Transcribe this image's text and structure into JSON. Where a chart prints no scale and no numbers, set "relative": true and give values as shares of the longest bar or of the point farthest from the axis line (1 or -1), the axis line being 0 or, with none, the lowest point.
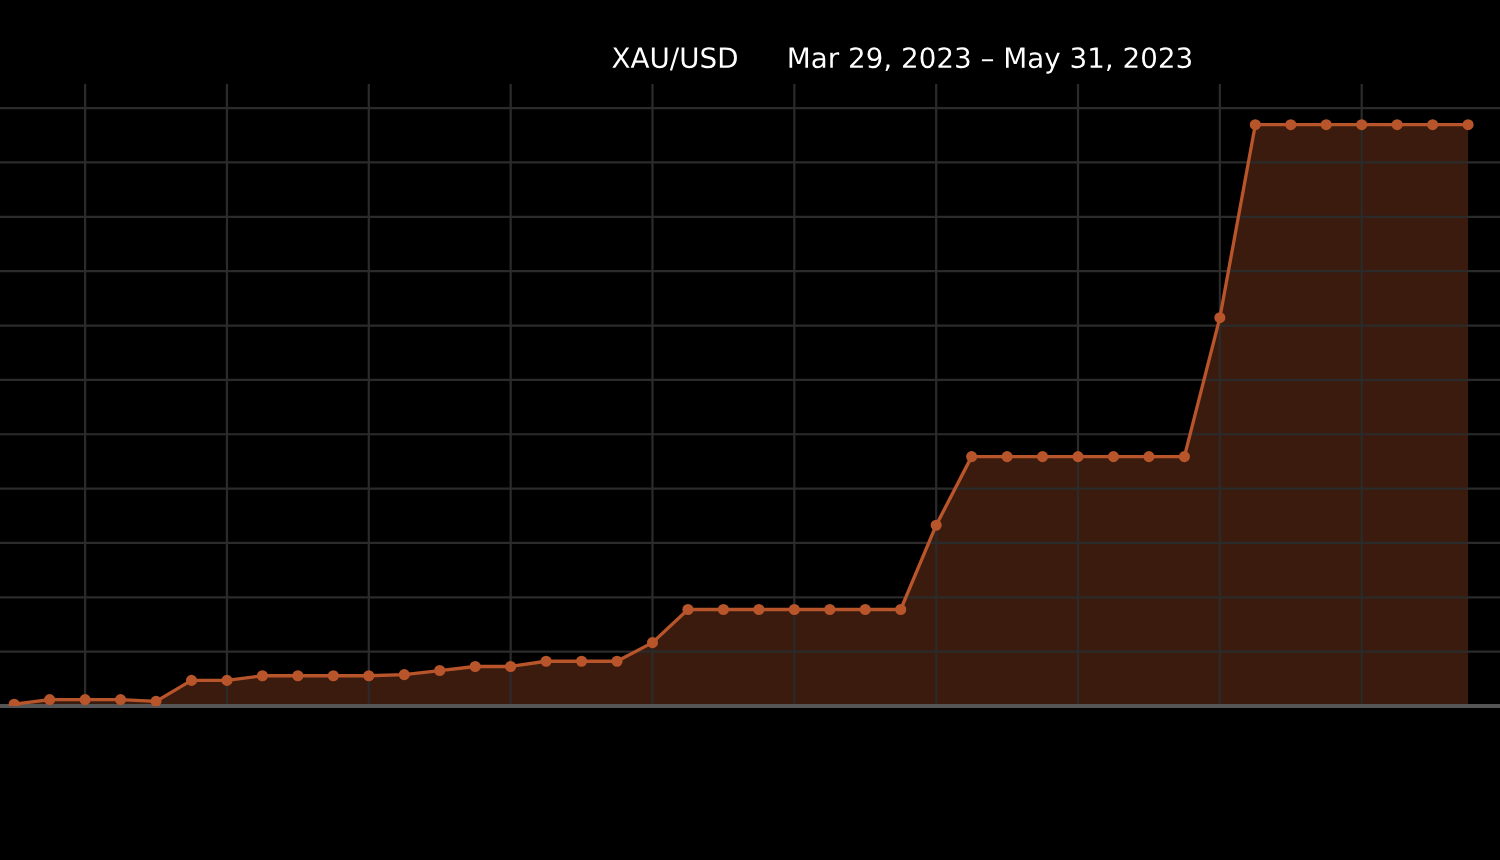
{
  "chart_data": {
    "type": "area",
    "title": "XAU/USD",
    "subtitle": "Mar 29, 2023 – May 31, 2023",
    "categories": [
      null,
      null,
      null,
      null,
      null,
      null,
      null,
      null,
      null,
      null,
      null,
      null,
      null,
      null,
      null,
      null,
      null,
      null,
      null,
      null,
      null,
      null,
      null,
      null,
      null,
      null,
      null,
      null,
      null,
      null,
      null,
      null,
      null,
      null,
      null,
      null,
      null,
      null,
      null,
      null,
      null,
      null
    ],
    "relative": true,
    "series": [
      {
        "color": "#b8552a",
        "values": [
          0.003,
          0.011,
          0.011,
          0.011,
          0.008,
          0.044,
          0.044,
          0.052,
          0.052,
          0.052,
          0.052,
          0.054,
          0.061,
          0.068,
          0.068,
          0.077,
          0.077,
          0.077,
          0.109,
          0.166,
          0.166,
          0.166,
          0.166,
          0.166,
          0.166,
          0.166,
          0.311,
          0.429,
          0.429,
          0.429,
          0.429,
          0.429,
          0.429,
          0.429,
          0.668,
          1,
          1,
          1,
          1,
          1,
          1,
          1
        ]
      }
    ],
    "marker": "circle",
    "grid": true
  }
}
